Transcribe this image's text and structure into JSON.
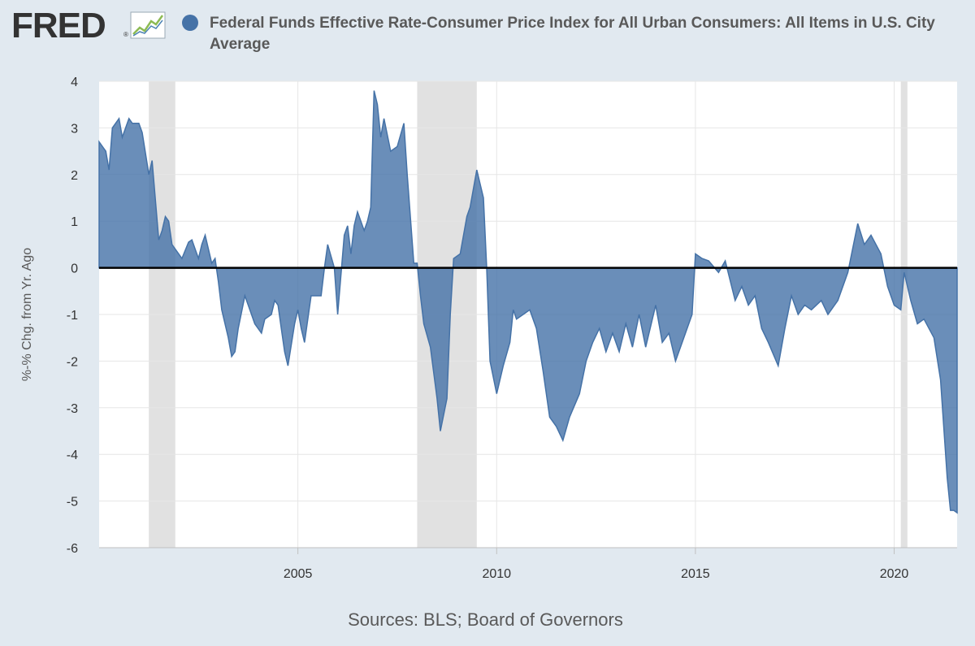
{
  "header": {
    "logo_text": "FRED",
    "logo_mark": "®",
    "logo_icon": "line-graph-icon",
    "legend_color": "#4572a7",
    "legend_title": "Federal Funds Effective Rate-Consumer Price Index for All Urban Consumers: All Items in U.S. City Average"
  },
  "footer": {
    "source": "Sources: BLS; Board of Governors"
  },
  "chart_data": {
    "type": "area",
    "title": "Federal Funds Effective Rate-Consumer Price Index for All Urban Consumers: All Items in U.S. City Average",
    "xlabel": "",
    "ylabel": "%-% Chg. from Yr. Ago",
    "ylim": [
      -6,
      4
    ],
    "xlim": [
      "2000-01",
      "2021-08"
    ],
    "yticks": [
      -6,
      -5,
      -4,
      -3,
      -2,
      -1,
      0,
      1,
      2,
      3,
      4
    ],
    "xticks": [
      "2005",
      "2010",
      "2015",
      "2020"
    ],
    "grid": true,
    "fill_color": "#4572a7",
    "recession_color": "#e1e1e1",
    "recessions": [
      [
        "2001-04",
        "2001-11"
      ],
      [
        "2008-01",
        "2009-06"
      ],
      [
        "2020-03",
        "2020-04"
      ]
    ],
    "series": [
      {
        "name": "Federal Funds Effective Rate-Consumer Price Index for All Urban Consumers: All Items in U.S. City Average",
        "points": [
          [
            "2000-01",
            2.7
          ],
          [
            "2000-03",
            2.5
          ],
          [
            "2000-04",
            2.1
          ],
          [
            "2000-05",
            3.0
          ],
          [
            "2000-07",
            3.2
          ],
          [
            "2000-08",
            2.8
          ],
          [
            "2000-10",
            3.2
          ],
          [
            "2000-11",
            3.1
          ],
          [
            "2001-01",
            3.1
          ],
          [
            "2001-02",
            2.9
          ],
          [
            "2001-04",
            2.0
          ],
          [
            "2001-05",
            2.3
          ],
          [
            "2001-07",
            0.6
          ],
          [
            "2001-08",
            0.8
          ],
          [
            "2001-09",
            1.1
          ],
          [
            "2001-10",
            1.0
          ],
          [
            "2001-11",
            0.5
          ],
          [
            "2002-01",
            0.3
          ],
          [
            "2002-02",
            0.2
          ],
          [
            "2002-04",
            0.55
          ],
          [
            "2002-05",
            0.6
          ],
          [
            "2002-06",
            0.4
          ],
          [
            "2002-07",
            0.2
          ],
          [
            "2002-08",
            0.5
          ],
          [
            "2002-09",
            0.7
          ],
          [
            "2002-11",
            0.1
          ],
          [
            "2002-12",
            0.2
          ],
          [
            "2003-01",
            -0.3
          ],
          [
            "2003-02",
            -0.9
          ],
          [
            "2003-04",
            -1.5
          ],
          [
            "2003-05",
            -1.9
          ],
          [
            "2003-06",
            -1.8
          ],
          [
            "2003-07",
            -1.3
          ],
          [
            "2003-09",
            -0.6
          ],
          [
            "2003-10",
            -0.8
          ],
          [
            "2003-12",
            -1.2
          ],
          [
            "2004-02",
            -1.4
          ],
          [
            "2004-03",
            -1.1
          ],
          [
            "2004-05",
            -1.0
          ],
          [
            "2004-06",
            -0.7
          ],
          [
            "2004-07",
            -0.8
          ],
          [
            "2004-08",
            -1.3
          ],
          [
            "2004-09",
            -1.8
          ],
          [
            "2004-10",
            -2.1
          ],
          [
            "2004-12",
            -1.2
          ],
          [
            "2005-01",
            -0.9
          ],
          [
            "2005-02",
            -1.3
          ],
          [
            "2005-03",
            -1.6
          ],
          [
            "2005-05",
            -0.6
          ],
          [
            "2005-08",
            -0.6
          ],
          [
            "2005-09",
            0.0
          ],
          [
            "2005-10",
            0.5
          ],
          [
            "2005-12",
            0.0
          ],
          [
            "2006-01",
            -1.0
          ],
          [
            "2006-03",
            0.7
          ],
          [
            "2006-04",
            0.9
          ],
          [
            "2006-05",
            0.3
          ],
          [
            "2006-06",
            0.9
          ],
          [
            "2006-07",
            1.2
          ],
          [
            "2006-09",
            0.8
          ],
          [
            "2006-10",
            1.0
          ],
          [
            "2006-11",
            1.3
          ],
          [
            "2006-12",
            3.8
          ],
          [
            "2007-01",
            3.5
          ],
          [
            "2007-02",
            2.8
          ],
          [
            "2007-03",
            3.2
          ],
          [
            "2007-05",
            2.5
          ],
          [
            "2007-07",
            2.6
          ],
          [
            "2007-09",
            3.1
          ],
          [
            "2007-10",
            2.0
          ],
          [
            "2007-12",
            0.1
          ],
          [
            "2008-01",
            0.1
          ],
          [
            "2008-02",
            -0.6
          ],
          [
            "2008-03",
            -1.2
          ],
          [
            "2008-05",
            -1.7
          ],
          [
            "2008-07",
            -2.8
          ],
          [
            "2008-08",
            -3.5
          ],
          [
            "2008-10",
            -2.8
          ],
          [
            "2008-11",
            -1.0
          ],
          [
            "2008-12",
            0.2
          ],
          [
            "2009-02",
            0.3
          ],
          [
            "2009-04",
            1.1
          ],
          [
            "2009-05",
            1.3
          ],
          [
            "2009-06",
            1.7
          ],
          [
            "2009-07",
            2.1
          ],
          [
            "2009-08",
            1.8
          ],
          [
            "2009-09",
            1.5
          ],
          [
            "2009-10",
            0.0
          ],
          [
            "2009-11",
            -2.0
          ],
          [
            "2010-01",
            -2.7
          ],
          [
            "2010-03",
            -2.1
          ],
          [
            "2010-05",
            -1.6
          ],
          [
            "2010-06",
            -0.9
          ],
          [
            "2010-07",
            -1.1
          ],
          [
            "2010-09",
            -1.0
          ],
          [
            "2010-11",
            -0.9
          ],
          [
            "2011-01",
            -1.3
          ],
          [
            "2011-03",
            -2.2
          ],
          [
            "2011-05",
            -3.2
          ],
          [
            "2011-07",
            -3.4
          ],
          [
            "2011-09",
            -3.7
          ],
          [
            "2011-11",
            -3.2
          ],
          [
            "2012-02",
            -2.7
          ],
          [
            "2012-04",
            -2.0
          ],
          [
            "2012-06",
            -1.6
          ],
          [
            "2012-08",
            -1.3
          ],
          [
            "2012-10",
            -1.8
          ],
          [
            "2012-12",
            -1.4
          ],
          [
            "2013-02",
            -1.8
          ],
          [
            "2013-04",
            -1.2
          ],
          [
            "2013-06",
            -1.7
          ],
          [
            "2013-08",
            -1.0
          ],
          [
            "2013-10",
            -1.7
          ],
          [
            "2014-01",
            -0.8
          ],
          [
            "2014-03",
            -1.6
          ],
          [
            "2014-05",
            -1.4
          ],
          [
            "2014-07",
            -2.0
          ],
          [
            "2014-09",
            -1.6
          ],
          [
            "2014-12",
            -1.0
          ],
          [
            "2015-01",
            0.3
          ],
          [
            "2015-03",
            0.2
          ],
          [
            "2015-05",
            0.15
          ],
          [
            "2015-08",
            -0.1
          ],
          [
            "2015-10",
            0.15
          ],
          [
            "2016-01",
            -0.7
          ],
          [
            "2016-03",
            -0.4
          ],
          [
            "2016-05",
            -0.8
          ],
          [
            "2016-07",
            -0.6
          ],
          [
            "2016-09",
            -1.3
          ],
          [
            "2016-11",
            -1.6
          ],
          [
            "2017-02",
            -2.1
          ],
          [
            "2017-04",
            -1.3
          ],
          [
            "2017-06",
            -0.6
          ],
          [
            "2017-08",
            -1.0
          ],
          [
            "2017-10",
            -0.8
          ],
          [
            "2017-12",
            -0.9
          ],
          [
            "2018-03",
            -0.7
          ],
          [
            "2018-05",
            -1.0
          ],
          [
            "2018-08",
            -0.7
          ],
          [
            "2018-11",
            -0.1
          ],
          [
            "2019-02",
            0.95
          ],
          [
            "2019-04",
            0.5
          ],
          [
            "2019-06",
            0.7
          ],
          [
            "2019-09",
            0.3
          ],
          [
            "2019-11",
            -0.4
          ],
          [
            "2020-01",
            -0.8
          ],
          [
            "2020-03",
            -0.9
          ],
          [
            "2020-04",
            -0.1
          ],
          [
            "2020-06",
            -0.7
          ],
          [
            "2020-08",
            -1.2
          ],
          [
            "2020-10",
            -1.1
          ],
          [
            "2021-01",
            -1.5
          ],
          [
            "2021-03",
            -2.4
          ],
          [
            "2021-05",
            -4.5
          ],
          [
            "2021-06",
            -5.2
          ],
          [
            "2021-07",
            -5.2
          ],
          [
            "2021-08",
            -5.25
          ]
        ]
      }
    ]
  }
}
